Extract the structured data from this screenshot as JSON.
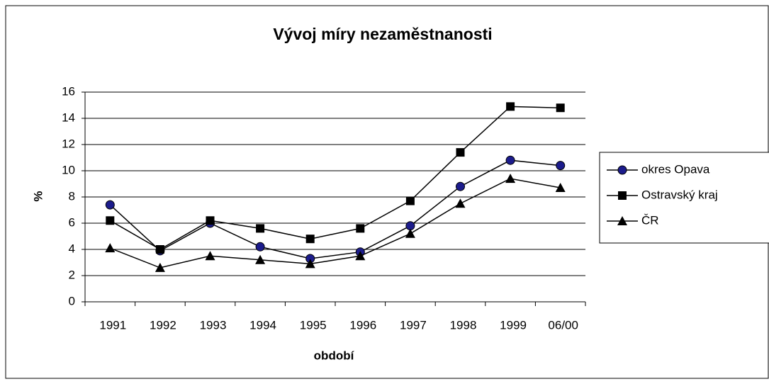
{
  "chart_data": {
    "type": "line",
    "title": "Vývoj míry nezaměstnanosti",
    "x_label": "období",
    "y_label": "%",
    "categories": [
      "1991",
      "1992",
      "1993",
      "1994",
      "1995",
      "1996",
      "1997",
      "1998",
      "1999",
      "06/00"
    ],
    "series": [
      {
        "name": "okres Opava",
        "color": "#000000",
        "marker": "circle",
        "marker_color": "#1c1c8c",
        "values": [
          7.4,
          3.9,
          6.0,
          4.2,
          3.3,
          3.8,
          5.8,
          8.8,
          10.8,
          10.4
        ]
      },
      {
        "name": "Ostravský kraj",
        "color": "#000000",
        "marker": "square",
        "marker_color": "#000000",
        "values": [
          6.2,
          4.0,
          6.2,
          5.6,
          4.8,
          5.6,
          7.7,
          11.4,
          14.9,
          14.8
        ]
      },
      {
        "name": "ČR",
        "color": "#000000",
        "marker": "triangle",
        "marker_color": "#000000",
        "values": [
          4.1,
          2.6,
          3.5,
          3.2,
          2.9,
          3.5,
          5.2,
          7.5,
          9.4,
          8.7
        ]
      }
    ],
    "ylim": [
      0,
      16
    ],
    "yticks": [
      0,
      2,
      4,
      6,
      8,
      10,
      12,
      14,
      16
    ],
    "grid": true,
    "legend": "right"
  }
}
